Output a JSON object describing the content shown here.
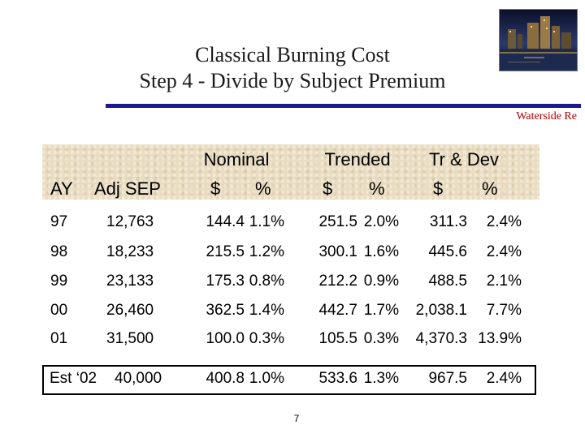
{
  "title": {
    "line1": "Classical Burning Cost",
    "line2": "Step 4 - Divide by Subject Premium"
  },
  "brand": "Waterside Re",
  "headers": {
    "nominal": "Nominal",
    "trended": "Trended",
    "trdev": "Tr & Dev",
    "ay": "AY",
    "adjsep": "Adj SEP",
    "nom_dollar": "$",
    "nom_pct": "%",
    "tr_dollar": "$",
    "tr_pct": "%",
    "td_dollar": "$",
    "td_pct": "%"
  },
  "rows": [
    {
      "ay": "97",
      "sep": "12,763",
      "nom_amt": "144.4",
      "nom_pct": "1.1%",
      "tr_amt": "251.5",
      "tr_pct": "2.0%",
      "td_amt": "311.3",
      "td_pct": "2.4%"
    },
    {
      "ay": "98",
      "sep": "18,233",
      "nom_amt": "215.5",
      "nom_pct": "1.2%",
      "tr_amt": "300.1",
      "tr_pct": "1.6%",
      "td_amt": "445.6",
      "td_pct": "2.4%"
    },
    {
      "ay": "99",
      "sep": "23,133",
      "nom_amt": "175.3",
      "nom_pct": "0.8%",
      "tr_amt": "212.2",
      "tr_pct": "0.9%",
      "td_amt": "488.5",
      "td_pct": "2.1%"
    },
    {
      "ay": "00",
      "sep": "26,460",
      "nom_amt": "362.5",
      "nom_pct": "1.4%",
      "tr_amt": "442.7",
      "tr_pct": "1.7%",
      "td_amt": "2,038.1",
      "td_pct": "7.7%"
    },
    {
      "ay": "01",
      "sep": "31,500",
      "nom_amt": "100.0",
      "nom_pct": "0.3%",
      "tr_amt": "105.5",
      "tr_pct": "0.3%",
      "td_amt": "4,370.3",
      "td_pct": "13.9%"
    },
    {
      "ay": "Est ‘02",
      "sep": "40,000",
      "nom_amt": "400.8",
      "nom_pct": "1.0%",
      "tr_amt": "533.6",
      "tr_pct": "1.3%",
      "td_amt": "967.5",
      "td_pct": "2.4%"
    }
  ],
  "page_number": "7"
}
